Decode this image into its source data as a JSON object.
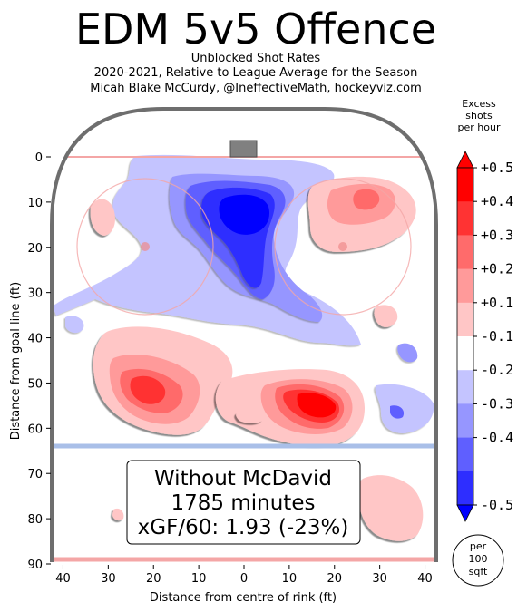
{
  "header": {
    "title": "EDM 5v5 Offence",
    "subtitle_1": "Unblocked Shot Rates",
    "subtitle_2": "2020-2021, Relative to League Average for the Season",
    "subtitle_3": "Micah Blake McCurdy, @IneffectiveMath, hockeyviz.com"
  },
  "colorbar": {
    "title_lines": [
      "Excess",
      "shots",
      "per hour"
    ],
    "levels": [
      {
        "label": "+0.5",
        "color": "#ff0000"
      },
      {
        "label": "+0.4",
        "color": "#ff3333"
      },
      {
        "label": "+0.3",
        "color": "#ff6b6b"
      },
      {
        "label": "+0.2",
        "color": "#ff9a9a"
      },
      {
        "label": "+0.1",
        "color": "#ffc6c6"
      },
      {
        "label": "-0.1",
        "color": "#ffffff"
      },
      {
        "label": "-0.2",
        "color": "#c4c4ff"
      },
      {
        "label": "-0.3",
        "color": "#9696ff"
      },
      {
        "label": "-0.4",
        "color": "#5f5fff"
      },
      {
        "label": "-0.5",
        "color": "#2e2eff"
      }
    ],
    "top_color": "#ff0000",
    "bottom_color": "#0000ff",
    "unit_lines": [
      "per",
      "100",
      "sqft"
    ]
  },
  "annotation": {
    "line_1": "Without McDavid",
    "line_2": "1785 minutes",
    "line_3": "xGF/60: 1.93 (-23%)"
  },
  "chart_data": {
    "type": "heatmap",
    "title": "EDM 5v5 Offence",
    "subtitle": "Unblocked Shot Rates",
    "xlabel": "Distance from centre of rink (ft)",
    "ylabel": "Distance from goal line (ft)",
    "x_ticks": [
      40,
      30,
      20,
      10,
      0,
      10,
      20,
      30,
      40
    ],
    "x_tick_values": [
      -40,
      -30,
      -20,
      -10,
      0,
      10,
      20,
      30,
      40
    ],
    "y_ticks": [
      0,
      10,
      20,
      30,
      40,
      50,
      60,
      70,
      80,
      90
    ],
    "xlim": [
      -42.5,
      42.5
    ],
    "ylim": [
      0,
      90
    ],
    "colorbar_range": [
      -0.5,
      0.5
    ],
    "regions": [
      {
        "x": 3,
        "y": 13,
        "value": -0.55
      },
      {
        "x": 0,
        "y": 22,
        "value": -0.45
      },
      {
        "x": 5,
        "y": 32,
        "value": -0.4
      },
      {
        "x": -12,
        "y": 8,
        "value": -0.25
      },
      {
        "x": -20,
        "y": 28,
        "value": -0.15
      },
      {
        "x": -37,
        "y": 38,
        "value": -0.15
      },
      {
        "x": 36,
        "y": 43,
        "value": -0.2
      },
      {
        "x": 33,
        "y": 56,
        "value": -0.2
      },
      {
        "x": 22,
        "y": 11,
        "value": 0.3
      },
      {
        "x": 30,
        "y": 18,
        "value": 0.15
      },
      {
        "x": -30,
        "y": 13,
        "value": 0.15
      },
      {
        "x": -22,
        "y": 52,
        "value": 0.4
      },
      {
        "x": 17,
        "y": 55,
        "value": 0.45
      },
      {
        "x": 0,
        "y": 57,
        "value": 0.15
      },
      {
        "x": 30,
        "y": 79,
        "value": 0.15
      },
      {
        "x": -27,
        "y": 79,
        "value": 0.15
      },
      {
        "x": 33,
        "y": 35,
        "value": 0.15
      }
    ]
  }
}
